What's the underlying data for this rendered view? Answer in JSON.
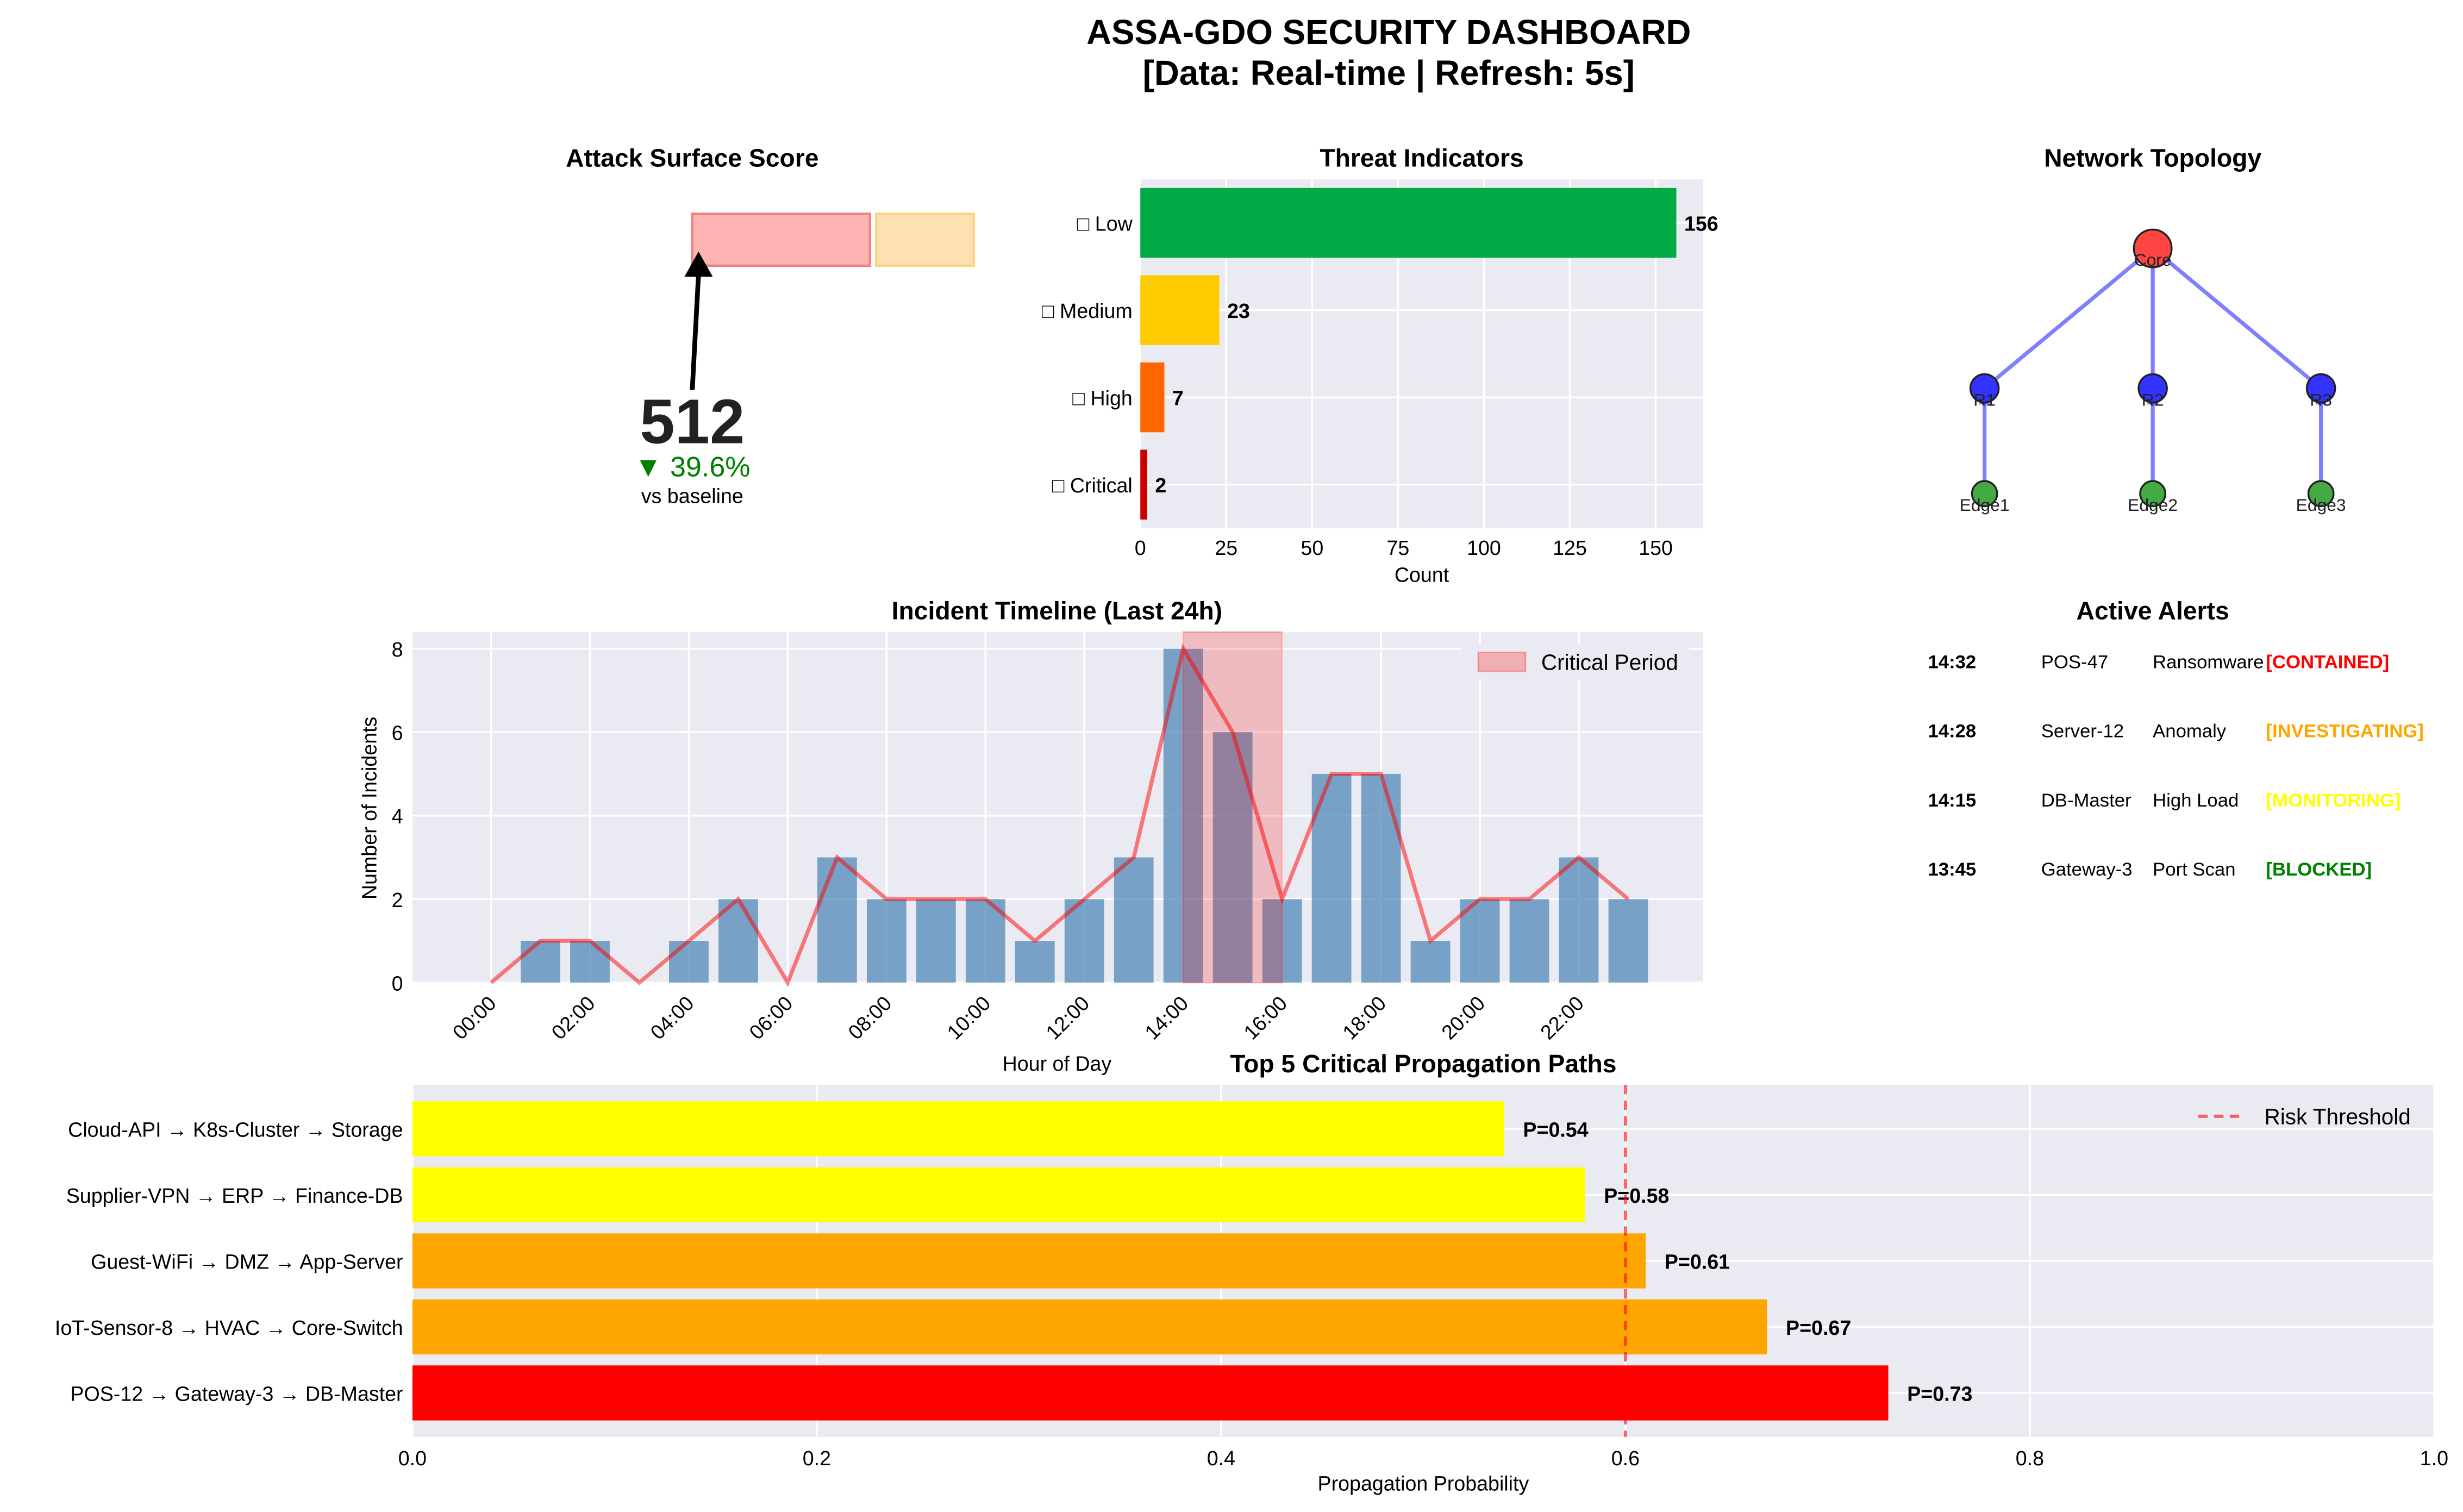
{
  "header": {
    "title": "ASSA-GDO SECURITY DASHBOARD",
    "subtitle": "[Data: Real-time | Refresh: 5s]"
  },
  "attack_surface": {
    "title": "Attack Surface Score",
    "score": "512",
    "change": "▼ 39.6%",
    "caption": "vs baseline",
    "colors": {
      "zone_red": "#ffb3b3",
      "zone_orange": "#ffe0b3",
      "change": "#008000"
    }
  },
  "network": {
    "title": "Network Topology",
    "nodes": [
      {
        "id": "core",
        "label": "Core",
        "tier": "core",
        "color": "#ff4444"
      },
      {
        "id": "r1",
        "label": "R1",
        "tier": "router",
        "color": "#3333ff"
      },
      {
        "id": "r2",
        "label": "R2",
        "tier": "router",
        "color": "#3333ff"
      },
      {
        "id": "r3",
        "label": "R3",
        "tier": "router",
        "color": "#3333ff"
      },
      {
        "id": "e1",
        "label": "Edge1",
        "tier": "edge",
        "color": "#44aa44"
      },
      {
        "id": "e2",
        "label": "Edge2",
        "tier": "edge",
        "color": "#44aa44"
      },
      {
        "id": "e3",
        "label": "Edge3",
        "tier": "edge",
        "color": "#44aa44"
      }
    ],
    "edges": [
      [
        "core",
        "r1"
      ],
      [
        "core",
        "r2"
      ],
      [
        "core",
        "r3"
      ],
      [
        "r1",
        "e1"
      ],
      [
        "r2",
        "e2"
      ],
      [
        "r3",
        "e3"
      ]
    ]
  },
  "alerts": {
    "title": "Active Alerts",
    "items": [
      {
        "time": "14:32",
        "asset": "POS-47",
        "type": "Ransomware",
        "status": "[CONTAINED]",
        "color": "#ff0000"
      },
      {
        "time": "14:28",
        "asset": "Server-12",
        "type": "Anomaly",
        "status": "[INVESTIGATING]",
        "color": "#ffa500"
      },
      {
        "time": "14:15",
        "asset": "DB-Master",
        "type": "High Load",
        "status": "[MONITORING]",
        "color": "#ffff00"
      },
      {
        "time": "13:45",
        "asset": "Gateway-3",
        "type": "Port Scan",
        "status": "[BLOCKED]",
        "color": "#008000"
      }
    ]
  },
  "chart_data": [
    {
      "id": "threat",
      "type": "bar",
      "orientation": "horizontal",
      "title": "Threat Indicators",
      "xlabel": "Count",
      "ylabel": "",
      "categories": [
        "□ Low",
        "□ Medium",
        "□ High",
        "□ Critical"
      ],
      "values": [
        156,
        23,
        7,
        2
      ],
      "colors": [
        "#00aa44",
        "#ffcc00",
        "#ff6600",
        "#cc0000"
      ],
      "xlim": [
        0,
        163.8
      ],
      "xticks": [
        0,
        25,
        50,
        75,
        100,
        125,
        150
      ],
      "grid": true
    },
    {
      "id": "timeline",
      "type": "bar",
      "title": "Incident Timeline (Last 24h)",
      "xlabel": "Hour of Day",
      "ylabel": "Number of Incidents",
      "x": [
        0,
        1,
        2,
        3,
        4,
        5,
        6,
        7,
        8,
        9,
        10,
        11,
        12,
        13,
        14,
        15,
        16,
        17,
        18,
        19,
        20,
        21,
        22,
        23
      ],
      "values": [
        0,
        1,
        1,
        0,
        1,
        2,
        0,
        3,
        2,
        2,
        2,
        1,
        2,
        3,
        8,
        6,
        2,
        5,
        5,
        1,
        2,
        2,
        3,
        2
      ],
      "xticks": [
        "00:00",
        "02:00",
        "04:00",
        "06:00",
        "08:00",
        "10:00",
        "12:00",
        "14:00",
        "16:00",
        "18:00",
        "20:00",
        "22:00"
      ],
      "ylim": [
        0,
        8.4
      ],
      "yticks": [
        0,
        2,
        4,
        6,
        8
      ],
      "highlight": {
        "label": "Critical Period",
        "from": 14,
        "to": 16,
        "color": "#ff0000"
      },
      "bar_color": "#4682b4",
      "line_color": "#ff0000",
      "legend": "top-right",
      "grid": true
    },
    {
      "id": "paths",
      "type": "bar",
      "orientation": "horizontal",
      "title": "Top 5 Critical Propagation Paths",
      "xlabel": "Propagation Probability",
      "ylabel": "",
      "categories": [
        "POS-12 → Gateway-3 → DB-Master",
        "IoT-Sensor-8 → HVAC → Core-Switch",
        "Guest-WiFi → DMZ → App-Server",
        "Supplier-VPN → ERP → Finance-DB",
        "Cloud-API → K8s-Cluster → Storage"
      ],
      "values": [
        0.73,
        0.67,
        0.61,
        0.58,
        0.54
      ],
      "value_labels": [
        "P=0.73",
        "P=0.67",
        "P=0.61",
        "P=0.58",
        "P=0.54"
      ],
      "colors": [
        "#ff0000",
        "#ffa500",
        "#ffa500",
        "#ffff00",
        "#ffff00"
      ],
      "xlim": [
        0,
        1.0
      ],
      "xticks": [
        "0.0",
        "0.2",
        "0.4",
        "0.6",
        "0.8",
        "1.0"
      ],
      "threshold": {
        "label": "Risk Threshold",
        "value": 0.6,
        "color": "#ff0000"
      },
      "legend": "top-right",
      "grid": true
    }
  ]
}
